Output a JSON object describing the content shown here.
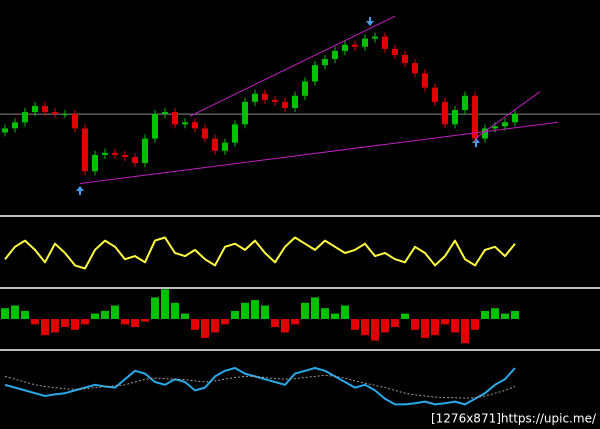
{
  "chart_data": [
    {
      "type": "candlestick",
      "open": [
        38,
        40,
        43,
        48,
        51,
        48,
        47,
        47,
        40,
        19,
        27,
        28,
        27,
        26,
        23,
        35,
        47,
        48,
        42,
        43,
        40,
        35,
        29,
        33,
        42,
        53,
        57,
        54,
        53,
        50,
        56,
        63,
        71,
        74,
        78,
        81,
        80,
        84,
        85,
        79,
        76,
        72,
        67,
        60,
        53,
        42,
        49,
        56,
        35,
        40,
        41,
        43
      ],
      "high": [
        42,
        45,
        50,
        53,
        53,
        50,
        49,
        49,
        42,
        29,
        30,
        30,
        29,
        28,
        37,
        49,
        50,
        50,
        45,
        45,
        42,
        37,
        35,
        44,
        55,
        59,
        59,
        56,
        55,
        58,
        65,
        73,
        76,
        80,
        83,
        83,
        86,
        87,
        87,
        81,
        78,
        74,
        69,
        62,
        55,
        51,
        58,
        58,
        42,
        43,
        45,
        49
      ],
      "low": [
        36,
        38,
        41,
        46,
        46,
        45,
        45,
        38,
        17,
        17,
        25,
        25,
        24,
        21,
        21,
        33,
        45,
        40,
        40,
        38,
        33,
        27,
        27,
        31,
        40,
        51,
        52,
        51,
        48,
        48,
        54,
        61,
        69,
        72,
        76,
        78,
        78,
        82,
        77,
        74,
        70,
        65,
        58,
        51,
        40,
        40,
        47,
        33,
        33,
        38,
        39,
        41
      ],
      "close": [
        40,
        43,
        48,
        51,
        48,
        47,
        47,
        40,
        19,
        27,
        28,
        27,
        26,
        23,
        35,
        47,
        48,
        42,
        43,
        40,
        35,
        29,
        33,
        42,
        53,
        57,
        54,
        53,
        50,
        56,
        63,
        71,
        74,
        78,
        81,
        80,
        84,
        85,
        79,
        76,
        72,
        67,
        60,
        53,
        42,
        49,
        56,
        35,
        40,
        41,
        43,
        47
      ],
      "up_color": "#00c000",
      "down_color": "#e00000",
      "ylim": [
        0,
        100
      ],
      "hlines": [
        47
      ],
      "hline_color": "#8a8a8a",
      "trendlines": [
        {
          "x": [
            7.5,
            55.3
          ],
          "values": [
            13,
            43
          ]
        },
        {
          "x": [
            18.5,
            39
          ],
          "values": [
            46,
            95
          ]
        },
        {
          "x": [
            47,
            53.5
          ],
          "values": [
            35,
            58
          ]
        }
      ],
      "trend_color": "#c020c0"
    },
    {
      "type": "line",
      "ylim": [
        0,
        100
      ],
      "series": [
        {
          "color": "#ffff40",
          "values": [
            40,
            60,
            70,
            55,
            35,
            65,
            50,
            30,
            25,
            55,
            70,
            60,
            40,
            45,
            35,
            70,
            75,
            50,
            45,
            55,
            40,
            30,
            60,
            65,
            55,
            70,
            50,
            35,
            60,
            75,
            65,
            55,
            70,
            60,
            50,
            55,
            65,
            45,
            50,
            40,
            35,
            60,
            50,
            30,
            45,
            70,
            40,
            30,
            55,
            60,
            45,
            65
          ]
        }
      ]
    },
    {
      "type": "bar",
      "ylim": [
        -50,
        50
      ],
      "pos_color": "#00c000",
      "neg_color": "#e00000",
      "values": [
        20,
        25,
        15,
        -10,
        -30,
        -25,
        -15,
        -20,
        -10,
        10,
        15,
        25,
        -10,
        -15,
        -5,
        40,
        55,
        30,
        10,
        -20,
        -35,
        -25,
        -10,
        15,
        30,
        35,
        25,
        -15,
        -25,
        -10,
        30,
        40,
        20,
        10,
        25,
        -20,
        -30,
        -40,
        -25,
        -15,
        10,
        -20,
        -35,
        -30,
        -10,
        -25,
        -45,
        -20,
        15,
        20,
        10,
        15
      ]
    },
    {
      "type": "line",
      "ylim": [
        0,
        100
      ],
      "series": [
        {
          "color": "#2aa8e8",
          "values": [
            45,
            40,
            35,
            30,
            25,
            28,
            30,
            35,
            40,
            45,
            42,
            40,
            55,
            70,
            65,
            50,
            45,
            55,
            50,
            35,
            40,
            60,
            70,
            75,
            65,
            60,
            55,
            50,
            45,
            65,
            70,
            75,
            70,
            60,
            50,
            40,
            45,
            35,
            20,
            10,
            10,
            12,
            15,
            10,
            12,
            15,
            10,
            20,
            30,
            45,
            55,
            75
          ]
        },
        {
          "color": "#a0a0a0",
          "dashed": true,
          "values": [
            60,
            55,
            50,
            45,
            42,
            40,
            38,
            37,
            38,
            40,
            42,
            43,
            45,
            50,
            55,
            57,
            56,
            55,
            54,
            52,
            50,
            52,
            55,
            58,
            60,
            60,
            58,
            56,
            55,
            56,
            58,
            60,
            62,
            60,
            57,
            52,
            48,
            44,
            40,
            35,
            30,
            27,
            25,
            23,
            22,
            22,
            21,
            22,
            25,
            30,
            35,
            42
          ]
        }
      ]
    }
  ],
  "footer": {
    "text": "[1276x871]https://upic.me/"
  }
}
